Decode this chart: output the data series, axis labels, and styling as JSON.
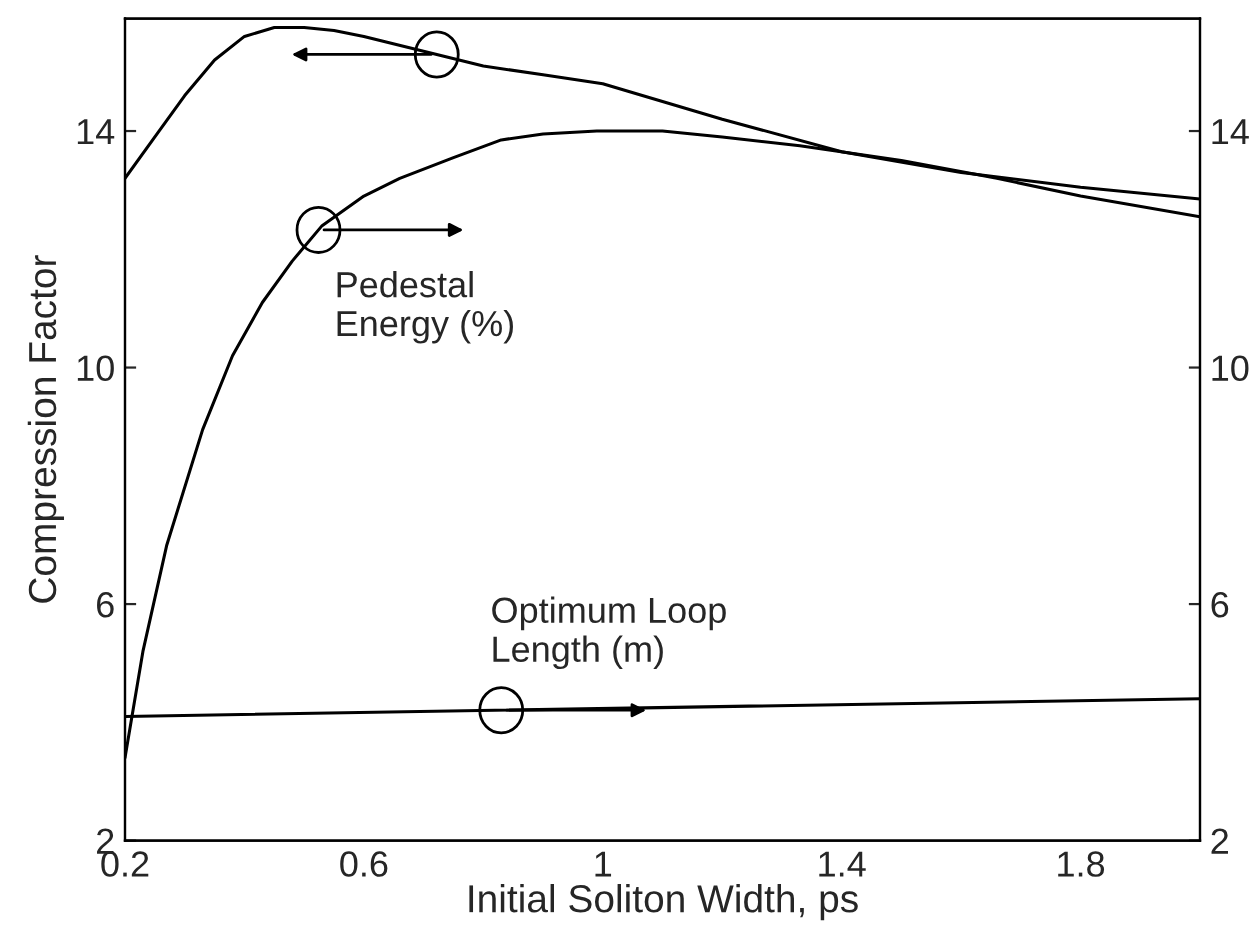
{
  "chart_data": {
    "type": "line",
    "xlabel": "Initial Soliton Width, ps",
    "ylabel": "Compression Factor",
    "xlim": [
      0.2,
      2.0
    ],
    "xticks": [
      0.2,
      0.6,
      {
        "value": 1.0,
        "label": "1"
      },
      1.4,
      1.8
    ],
    "ylim": [
      2,
      15.9
    ],
    "yticks": [
      2,
      6,
      10,
      14
    ],
    "y2lim": [
      2,
      15.9
    ],
    "y2ticks": [
      2,
      6,
      10,
      14
    ],
    "grid": false,
    "legend": false,
    "marker": "none",
    "line_style": "solid",
    "series": [
      {
        "color": "#000000",
        "x": [
          0.2,
          0.25,
          0.3,
          0.35,
          0.4,
          0.45,
          0.5,
          0.55,
          0.6,
          0.7,
          0.8,
          0.9,
          1.0,
          1.2,
          1.4,
          1.6,
          1.8,
          2.0
        ],
        "values": [
          13.2,
          13.9,
          14.6,
          15.2,
          15.6,
          15.75,
          15.75,
          15.7,
          15.6,
          15.35,
          15.1,
          14.95,
          14.8,
          14.2,
          13.65,
          13.3,
          13.05,
          12.85
        ]
      },
      {
        "color": "#000000",
        "axis": "y2",
        "x": [
          0.2,
          0.23,
          0.27,
          0.33,
          0.38,
          0.43,
          0.48,
          0.53,
          0.6,
          0.66,
          0.75,
          0.83,
          0.9,
          0.99,
          1.1,
          1.2,
          1.33,
          1.5,
          1.66,
          1.8,
          2.0
        ],
        "values": [
          3.4,
          5.2,
          7.0,
          8.95,
          10.2,
          11.1,
          11.8,
          12.4,
          12.9,
          13.2,
          13.55,
          13.85,
          13.95,
          14.0,
          14.0,
          13.9,
          13.75,
          13.5,
          13.2,
          12.9,
          12.55
        ]
      },
      {
        "color": "#000000",
        "axis": "y2",
        "x": [
          0.2,
          2.0
        ],
        "values": [
          4.1,
          4.4
        ]
      }
    ],
    "annotations": [
      "Pedestal\nEnergy (%)",
      "Optimum Loop\nLength (m)"
    ]
  }
}
